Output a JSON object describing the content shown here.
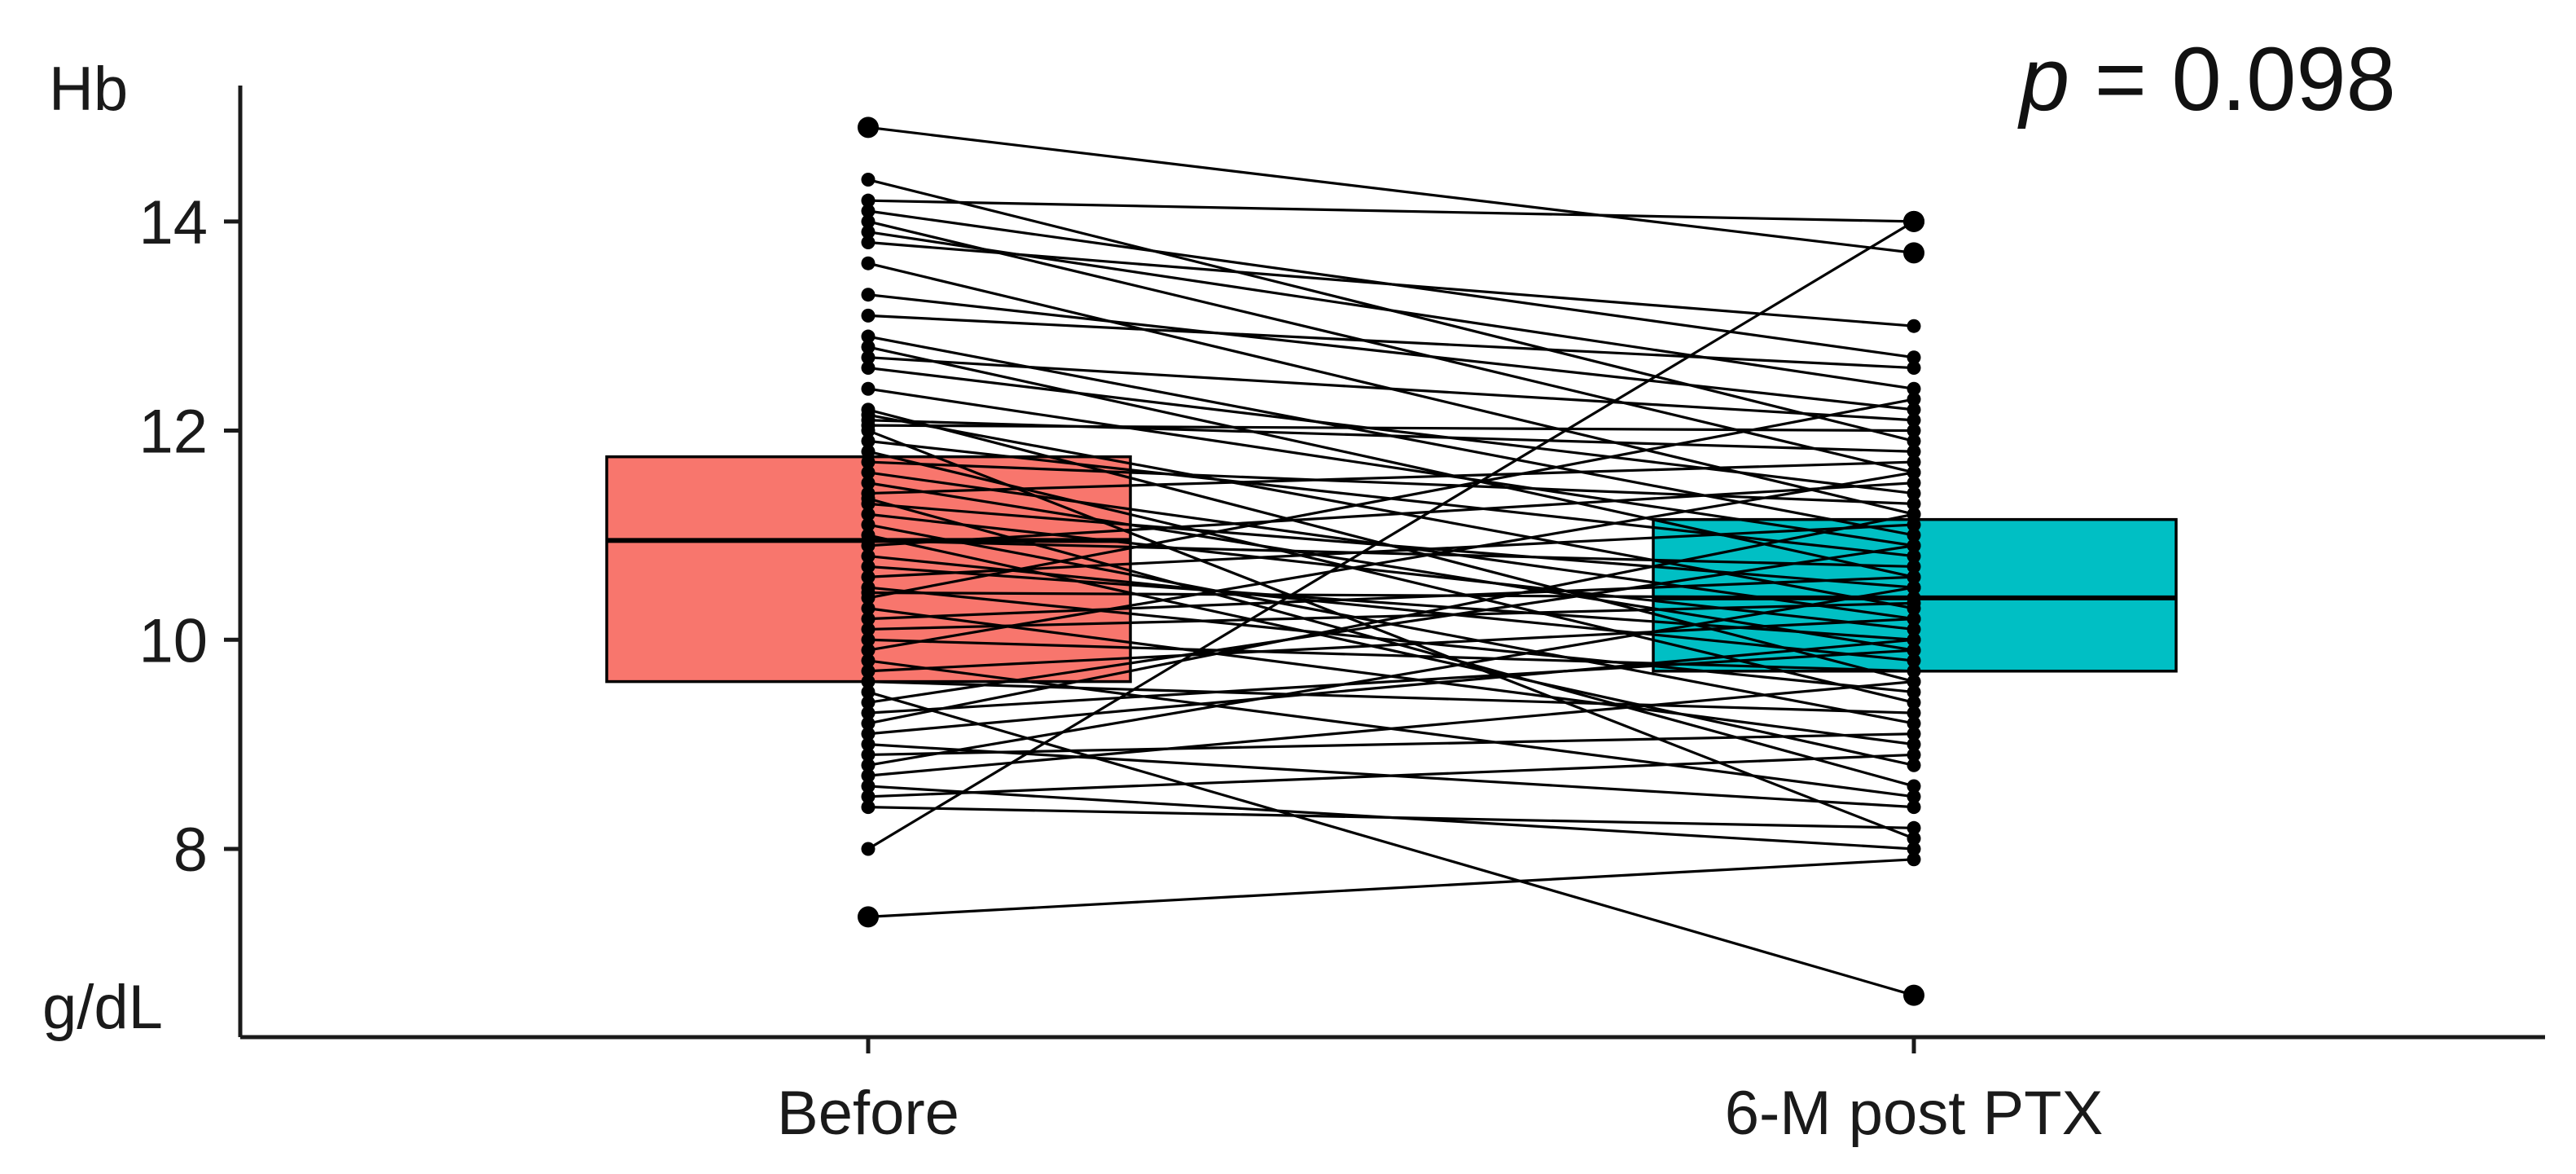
{
  "chart_data": {
    "type": "box",
    "ylabel_top": "Hb",
    "ylabel_bottom": "g/dL",
    "annotation": {
      "p_symbol": "p",
      "p_rest": " = 0.098"
    },
    "ylim": [
      6.2,
      15.3
    ],
    "yticks": [
      8,
      10,
      12,
      14
    ],
    "categories": [
      "Before",
      "6-M post PTX"
    ],
    "colors": {
      "before": "#F8766D",
      "after": "#00BFC4",
      "lines": "#000000"
    },
    "boxes": [
      {
        "category": "Before",
        "q1": 9.6,
        "median": 10.95,
        "q3": 11.75
      },
      {
        "category": "6-M post PTX",
        "q1": 9.7,
        "median": 10.4,
        "q3": 11.15
      }
    ],
    "pairs": [
      [
        14.9,
        13.7
      ],
      [
        14.4,
        11.9
      ],
      [
        14.2,
        14.0
      ],
      [
        14.1,
        12.7
      ],
      [
        14.0,
        11.6
      ],
      [
        13.9,
        12.4
      ],
      [
        13.8,
        13.0
      ],
      [
        13.6,
        11.2
      ],
      [
        13.3,
        12.2
      ],
      [
        13.1,
        12.6
      ],
      [
        12.9,
        11.0
      ],
      [
        12.8,
        10.6
      ],
      [
        12.7,
        12.1
      ],
      [
        12.6,
        11.4
      ],
      [
        12.4,
        10.9
      ],
      [
        12.2,
        9.6
      ],
      [
        12.15,
        10.3
      ],
      [
        12.1,
        11.8
      ],
      [
        12.05,
        12.0
      ],
      [
        12.0,
        8.1
      ],
      [
        11.9,
        10.8
      ],
      [
        11.8,
        9.4
      ],
      [
        11.7,
        11.3
      ],
      [
        11.6,
        10.2
      ],
      [
        11.5,
        9.9
      ],
      [
        11.4,
        11.7
      ],
      [
        11.35,
        8.6
      ],
      [
        11.3,
        10.5
      ],
      [
        11.2,
        10.1
      ],
      [
        11.1,
        9.2
      ],
      [
        11.0,
        8.8
      ],
      [
        10.95,
        10.7
      ],
      [
        10.9,
        11.5
      ],
      [
        10.8,
        9.8
      ],
      [
        10.7,
        10.0
      ],
      [
        10.6,
        11.1
      ],
      [
        10.5,
        9.5
      ],
      [
        10.45,
        10.4
      ],
      [
        10.4,
        12.3
      ],
      [
        10.3,
        9.0
      ],
      [
        10.2,
        10.6
      ],
      [
        10.1,
        10.35
      ],
      [
        10.0,
        9.7
      ],
      [
        9.9,
        11.6
      ],
      [
        9.8,
        8.5
      ],
      [
        9.7,
        10.2
      ],
      [
        9.6,
        9.3
      ],
      [
        9.5,
        6.6
      ],
      [
        9.4,
        10.9
      ],
      [
        9.3,
        9.9
      ],
      [
        9.2,
        11.2
      ],
      [
        9.1,
        10.0
      ],
      [
        9.0,
        8.4
      ],
      [
        8.9,
        9.1
      ],
      [
        8.8,
        10.5
      ],
      [
        8.7,
        9.6
      ],
      [
        8.6,
        8.0
      ],
      [
        8.5,
        8.9
      ],
      [
        8.4,
        8.2
      ],
      [
        8.0,
        14.0
      ],
      [
        7.35,
        7.9
      ]
    ]
  }
}
